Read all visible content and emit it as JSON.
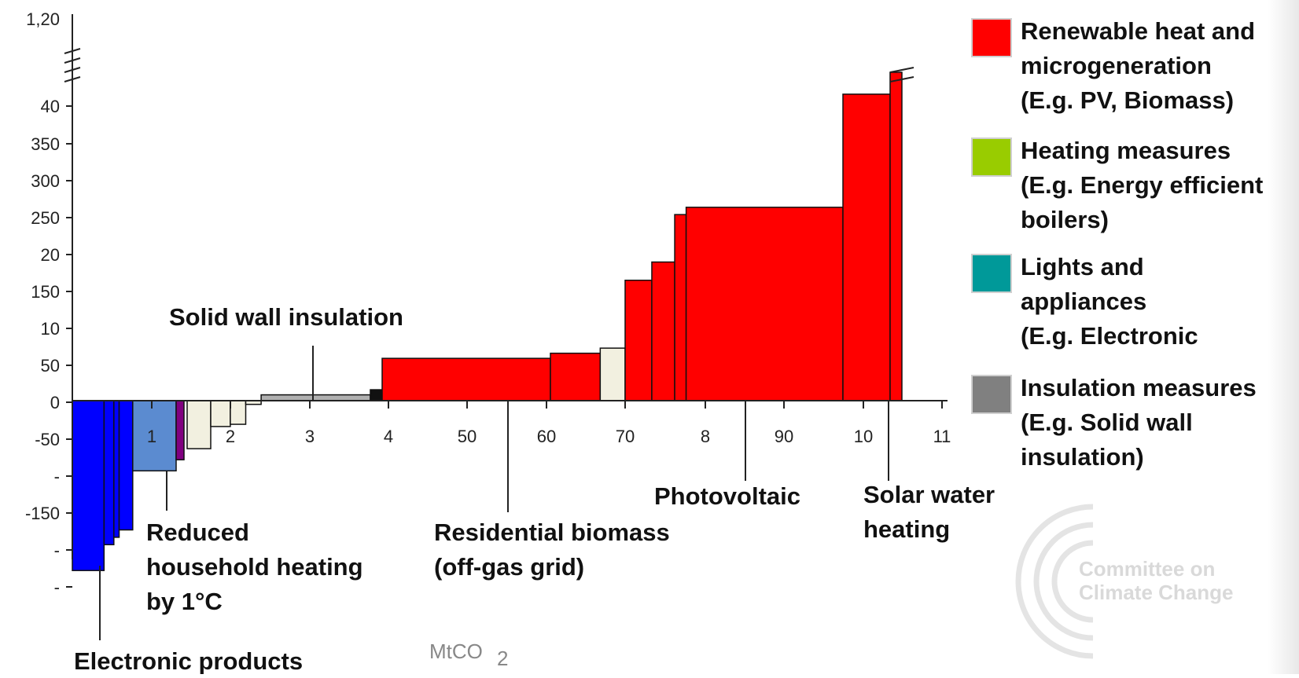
{
  "chart_data": {
    "type": "bar",
    "subtype": "marginal-abatement-cost-curve",
    "xlabel": "MtCO",
    "xlabel_subscript": "2",
    "x_ticks": [
      "1",
      "2",
      "3",
      "4",
      "50",
      "60",
      "70",
      "8",
      "90",
      "10",
      "11"
    ],
    "y_ticks": [
      "1,20",
      "40",
      "350",
      "300",
      "250",
      "20",
      "150",
      "10",
      "50",
      "0",
      "-50",
      "-",
      "-150",
      "-",
      "-"
    ],
    "axis_break": true,
    "grid": false,
    "legend_position": "right",
    "series": [
      {
        "name": "Renewable heat and microgeneration (E.g. PV, Biomass)",
        "color": "#ff0000"
      },
      {
        "name": "Heating measures (E.g. Energy efficient boilers)",
        "color": "#99cc00"
      },
      {
        "name": "Lights and appliances (E.g. Electronic",
        "color": "#009999"
      },
      {
        "name": "Insulation measures (E.g. Solid wall insulation)",
        "color": "#808080"
      }
    ],
    "bars": [
      {
        "x0": 0.0,
        "x1": 0.42,
        "y": -230,
        "color": "#0000ff"
      },
      {
        "x0": 0.42,
        "x1": 0.55,
        "y": -195,
        "color": "#0000ff"
      },
      {
        "x0": 0.55,
        "x1": 0.62,
        "y": -185,
        "color": "#0000ff"
      },
      {
        "x0": 0.62,
        "x1": 0.8,
        "y": -175,
        "color": "#0000ff"
      },
      {
        "x0": 0.8,
        "x1": 1.36,
        "y": -95,
        "color": "#5b8bd0"
      },
      {
        "x0": 1.36,
        "x1": 1.46,
        "y": -80,
        "color": "#800080"
      },
      {
        "x0": 1.5,
        "x1": 1.8,
        "y": -65,
        "color": "#f2f0e0"
      },
      {
        "x0": 1.8,
        "x1": 2.05,
        "y": -35,
        "color": "#f2f0e0"
      },
      {
        "x0": 2.05,
        "x1": 2.25,
        "y": -32,
        "color": "#f2f0e0"
      },
      {
        "x0": 2.25,
        "x1": 2.45,
        "y": -5,
        "color": "#f2f0e0"
      },
      {
        "x0": 2.45,
        "x1": 3.85,
        "y": 8,
        "color": "#b0b0b0"
      },
      {
        "x0": 3.85,
        "x1": 4.0,
        "y": 15,
        "color": "#111111"
      },
      {
        "x0": 4.0,
        "x1": 61.0,
        "y": 58,
        "color": "#ff0000"
      },
      {
        "x0": 61.0,
        "x1": 67.0,
        "y": 65,
        "color": "#ff0000"
      },
      {
        "x0": 67.0,
        "x1": 70.0,
        "y": 72,
        "color": "#f2f0e0"
      },
      {
        "x0": 70.0,
        "x1": 73.5,
        "y": 165,
        "color": "#ff0000"
      },
      {
        "x0": 73.5,
        "x1": 76.5,
        "y": 190,
        "color": "#ff0000"
      },
      {
        "x0": 76.5,
        "x1": 78.0,
        "y": 255,
        "color": "#ff0000"
      },
      {
        "x0": 78.0,
        "x1": 98.0,
        "y": 265,
        "color": "#ff0000"
      },
      {
        "x0": 98.0,
        "x1": 104.0,
        "y": 420,
        "color": "#ff0000"
      },
      {
        "x0": 104.0,
        "x1": 105.5,
        "y": 450,
        "color": "#ff0000"
      }
    ],
    "annotations": [
      {
        "text": "Solid wall insulation",
        "x": 3.0
      },
      {
        "text": "Reduced household heating by 1°C",
        "x": 1.2
      },
      {
        "text": "Electronic products",
        "x": 0.3
      },
      {
        "text": "Residential biomass (off-gas grid)",
        "x": 55
      },
      {
        "text": "Photovoltaic",
        "x": 85
      },
      {
        "text": "Solar water heating",
        "x": 103
      }
    ]
  },
  "annotations_text": {
    "solid_wall": "Solid wall insulation",
    "reduced_heating": [
      "Reduced",
      "household heating",
      "by 1°C"
    ],
    "electronic": "Electronic products",
    "biomass": [
      "Residential biomass",
      "(off-gas grid)"
    ],
    "photovoltaic": "Photovoltaic",
    "solar_water": [
      "Solar water",
      "heating"
    ]
  },
  "legend": [
    {
      "lines": [
        "Renewable heat and",
        "microgeneration",
        "(E.g. PV, Biomass)"
      ],
      "color": "#ff0000"
    },
    {
      "lines": [
        "Heating measures",
        "(E.g. Energy efficient",
        "boilers)"
      ],
      "color": "#99cc00"
    },
    {
      "lines": [
        "Lights and",
        "appliances",
        "(E.g. Electronic"
      ],
      "color": "#009999"
    },
    {
      "lines": [
        "Insulation measures",
        "(E.g. Solid wall",
        "insulation)"
      ],
      "color": "#808080"
    }
  ],
  "watermark": {
    "lines": [
      "Committee on",
      "Climate Change"
    ]
  }
}
